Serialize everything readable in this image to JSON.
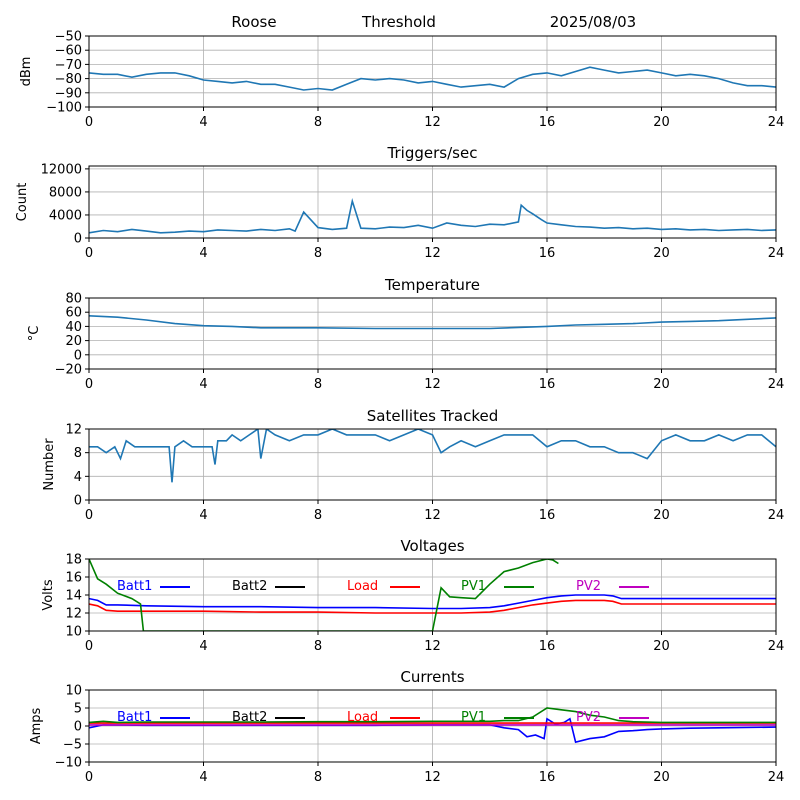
{
  "header": {
    "station": "Roose",
    "label": "Threshold",
    "date": "2025/08/03"
  },
  "chart_data": [
    {
      "id": "signal",
      "type": "line",
      "title": "",
      "ylabel": "dBm",
      "xlim": [
        0,
        24
      ],
      "ylim": [
        -100,
        -50
      ],
      "xticks": [
        0,
        4,
        8,
        12,
        16,
        20,
        24
      ],
      "yticks": [
        -100,
        -90,
        -80,
        -70,
        -60,
        -50
      ],
      "grid": true,
      "series": [
        {
          "color": "#1f77b4",
          "x": [
            0,
            0.5,
            1,
            1.5,
            2,
            2.5,
            3,
            3.5,
            4,
            4.5,
            5,
            5.5,
            6,
            6.5,
            7,
            7.5,
            8,
            8.5,
            9,
            9.5,
            10,
            10.5,
            11,
            11.5,
            12,
            12.5,
            13,
            13.5,
            14,
            14.5,
            15,
            15.5,
            16,
            16.5,
            17,
            17.5,
            18,
            18.5,
            19,
            19.5,
            20,
            20.5,
            21,
            21.5,
            22,
            22.5,
            23,
            23.5,
            24
          ],
          "y": [
            -76,
            -77,
            -77,
            -79,
            -77,
            -76,
            -76,
            -78,
            -81,
            -82,
            -83,
            -82,
            -84,
            -84,
            -86,
            -88,
            -87,
            -88,
            -84,
            -80,
            -81,
            -80,
            -81,
            -83,
            -82,
            -84,
            -86,
            -85,
            -84,
            -86,
            -80,
            -77,
            -76,
            -78,
            -75,
            -72,
            -74,
            -76,
            -75,
            -74,
            -76,
            -78,
            -77,
            -78,
            -80,
            -83,
            -85,
            -85,
            -86
          ]
        }
      ]
    },
    {
      "id": "triggers",
      "type": "line",
      "title": "Triggers/sec",
      "ylabel": "Count",
      "xlim": [
        0,
        24
      ],
      "ylim": [
        0,
        12500
      ],
      "xticks": [
        0,
        4,
        8,
        12,
        16,
        20,
        24
      ],
      "yticks": [
        0,
        4000,
        8000,
        12000
      ],
      "grid": true,
      "series": [
        {
          "color": "#1f77b4",
          "x": [
            0,
            0.5,
            1,
            1.5,
            2,
            2.5,
            3,
            3.5,
            4,
            4.5,
            5,
            5.5,
            6,
            6.5,
            7,
            7.2,
            7.5,
            8,
            8.5,
            9,
            9.2,
            9.5,
            10,
            10.5,
            11,
            11.5,
            12,
            12.5,
            13,
            13.5,
            14,
            14.5,
            15,
            15.1,
            15.3,
            15.5,
            15.8,
            16,
            16.5,
            17,
            17.5,
            18,
            18.5,
            19,
            19.5,
            20,
            20.5,
            21,
            21.5,
            22,
            22.5,
            23,
            23.5,
            24
          ],
          "y": [
            900,
            1300,
            1100,
            1500,
            1200,
            900,
            1000,
            1200,
            1100,
            1400,
            1300,
            1200,
            1500,
            1300,
            1600,
            1200,
            4500,
            1800,
            1500,
            1700,
            6400,
            1700,
            1600,
            1900,
            1800,
            2200,
            1700,
            2600,
            2200,
            2000,
            2400,
            2300,
            2800,
            5700,
            4800,
            4200,
            3200,
            2600,
            2300,
            2000,
            1900,
            1700,
            1800,
            1600,
            1700,
            1500,
            1600,
            1400,
            1500,
            1300,
            1400,
            1500,
            1300,
            1400
          ]
        }
      ]
    },
    {
      "id": "temperature",
      "type": "line",
      "title": "Temperature",
      "ylabel": "°C",
      "xlim": [
        0,
        24
      ],
      "ylim": [
        -20,
        80
      ],
      "xticks": [
        0,
        4,
        8,
        12,
        16,
        20,
        24
      ],
      "yticks": [
        -20,
        0,
        20,
        40,
        60,
        80
      ],
      "grid": true,
      "series": [
        {
          "color": "#1f77b4",
          "x": [
            0,
            1,
            2,
            3,
            4,
            5,
            6,
            8,
            10,
            12,
            14,
            16,
            17,
            18,
            19,
            20,
            21,
            22,
            23,
            24
          ],
          "y": [
            55,
            53,
            49,
            44,
            41,
            40,
            38,
            38,
            37,
            37,
            37,
            40,
            42,
            43,
            44,
            46,
            47,
            48,
            50,
            52
          ]
        }
      ]
    },
    {
      "id": "satellites",
      "type": "line",
      "title": "Satellites Tracked",
      "ylabel": "Number",
      "xlim": [
        0,
        24
      ],
      "ylim": [
        0,
        12
      ],
      "xticks": [
        0,
        4,
        8,
        12,
        16,
        20,
        24
      ],
      "yticks": [
        0,
        4,
        8,
        12
      ],
      "grid": true,
      "series": [
        {
          "color": "#1f77b4",
          "x": [
            0,
            0.3,
            0.6,
            0.9,
            1.1,
            1.3,
            1.6,
            2,
            2.4,
            2.8,
            2.9,
            3,
            3.3,
            3.6,
            4,
            4.3,
            4.4,
            4.5,
            4.8,
            5,
            5.3,
            5.6,
            5.9,
            6,
            6.2,
            6.5,
            7,
            7.5,
            8,
            8.5,
            9,
            9.5,
            10,
            10.5,
            11,
            11.5,
            12,
            12.3,
            12.6,
            13,
            13.5,
            14,
            14.5,
            15,
            15.5,
            16,
            16.5,
            17,
            17.5,
            18,
            18.5,
            19,
            19.5,
            20,
            20.5,
            21,
            21.5,
            22,
            22.5,
            23,
            23.5,
            24
          ],
          "y": [
            9,
            9,
            8,
            9,
            7,
            10,
            9,
            9,
            9,
            9,
            3,
            9,
            10,
            9,
            9,
            9,
            6,
            10,
            10,
            11,
            10,
            11,
            12,
            7,
            12,
            11,
            10,
            11,
            11,
            12,
            11,
            11,
            11,
            10,
            11,
            12,
            11,
            8,
            9,
            10,
            9,
            10,
            11,
            11,
            11,
            9,
            10,
            10,
            9,
            9,
            8,
            8,
            7,
            10,
            11,
            10,
            10,
            11,
            10,
            11,
            11,
            9
          ]
        }
      ]
    },
    {
      "id": "voltages",
      "type": "line",
      "title": "Voltages",
      "ylabel": "Volts",
      "xlim": [
        0,
        24
      ],
      "ylim": [
        10,
        18
      ],
      "xticks": [
        0,
        4,
        8,
        12,
        16,
        20,
        24
      ],
      "yticks": [
        10,
        12,
        14,
        16,
        18
      ],
      "grid": true,
      "legend": [
        "Batt1",
        "Batt2",
        "Load",
        "PV1",
        "PV2"
      ],
      "series": [
        {
          "name": "Batt1",
          "color": "#0000ff",
          "x": [
            0,
            0.3,
            0.6,
            1,
            2,
            4,
            6,
            8,
            10,
            12,
            13,
            14,
            14.5,
            15,
            15.5,
            16,
            16.5,
            17,
            18,
            18.3,
            18.6,
            20,
            22,
            24
          ],
          "y": [
            13.6,
            13.4,
            12.9,
            12.9,
            12.8,
            12.7,
            12.7,
            12.6,
            12.6,
            12.5,
            12.5,
            12.6,
            12.8,
            13.1,
            13.4,
            13.7,
            13.9,
            14.0,
            14.0,
            13.9,
            13.6,
            13.6,
            13.6,
            13.6
          ]
        },
        {
          "name": "Batt2",
          "color": "#000000",
          "x": [],
          "y": []
        },
        {
          "name": "Load",
          "color": "#ff0000",
          "x": [
            0,
            0.3,
            0.6,
            1,
            2,
            4,
            6,
            8,
            10,
            12,
            13,
            14,
            14.5,
            15,
            15.5,
            16,
            16.5,
            17,
            18,
            18.3,
            18.6,
            20,
            22,
            24
          ],
          "y": [
            13.0,
            12.8,
            12.3,
            12.2,
            12.2,
            12.2,
            12.1,
            12.1,
            12.0,
            12.0,
            12.0,
            12.1,
            12.3,
            12.6,
            12.9,
            13.1,
            13.3,
            13.4,
            13.4,
            13.3,
            13.0,
            13.0,
            13.0,
            13.0
          ]
        },
        {
          "name": "PV1",
          "color": "#008000",
          "x": [
            0,
            0.3,
            0.6,
            1,
            1.5,
            1.8,
            1.9,
            12,
            12.3,
            12.6,
            13,
            13.5,
            14,
            14.5,
            15,
            15.5,
            16,
            16.2,
            16.4
          ],
          "y": [
            18.0,
            15.8,
            15.2,
            14.2,
            13.6,
            13.0,
            10,
            10,
            14.8,
            13.8,
            13.7,
            13.6,
            15.2,
            16.6,
            17.0,
            17.6,
            18.0,
            17.9,
            17.5
          ]
        },
        {
          "name": "PV2",
          "color": "#bf00bf",
          "x": [],
          "y": []
        }
      ]
    },
    {
      "id": "currents",
      "type": "line",
      "title": "Currents",
      "ylabel": "Amps",
      "xlim": [
        0,
        24
      ],
      "ylim": [
        -10,
        10
      ],
      "xticks": [
        0,
        4,
        8,
        12,
        16,
        20,
        24
      ],
      "yticks": [
        -10,
        -5,
        0,
        5,
        10
      ],
      "grid": true,
      "legend": [
        "Batt1",
        "Batt2",
        "Load",
        "PV1",
        "PV2"
      ],
      "series": [
        {
          "name": "Batt1",
          "color": "#0000ff",
          "x": [
            0,
            0.5,
            2,
            4,
            6,
            8,
            10,
            12,
            14,
            14.5,
            15,
            15.3,
            15.6,
            15.9,
            16,
            16.3,
            16.6,
            16.8,
            17,
            17.5,
            18,
            18.5,
            19,
            19.5,
            20,
            21,
            22,
            24
          ],
          "y": [
            -0.5,
            0.3,
            0.2,
            0.2,
            0.2,
            0.2,
            0.2,
            0.3,
            0.3,
            -0.5,
            -1.0,
            -3.0,
            -2.5,
            -3.5,
            2.0,
            0.5,
            1.0,
            2.0,
            -4.5,
            -3.5,
            -3.0,
            -1.5,
            -1.3,
            -1.0,
            -0.8,
            -0.6,
            -0.5,
            -0.3
          ]
        },
        {
          "name": "Batt2",
          "color": "#000000",
          "x": [],
          "y": []
        },
        {
          "name": "Load",
          "color": "#ff0000",
          "x": [
            0,
            4,
            8,
            12,
            16,
            20,
            24
          ],
          "y": [
            0.8,
            0.8,
            0.8,
            0.8,
            0.8,
            0.8,
            0.8
          ]
        },
        {
          "name": "PV1",
          "color": "#008000",
          "x": [
            0,
            0.5,
            1,
            2,
            4,
            6,
            8,
            10,
            12,
            14,
            14.5,
            15,
            15.5,
            16,
            16.5,
            17,
            17.5,
            18,
            18.5,
            19,
            20,
            22,
            24
          ],
          "y": [
            1.0,
            1.3,
            1.0,
            1.1,
            1.1,
            1.1,
            1.2,
            1.2,
            1.3,
            1.3,
            1.5,
            1.5,
            2.5,
            5.0,
            4.5,
            4.0,
            3.0,
            2.5,
            1.5,
            1.2,
            1.0,
            1.0,
            1.0
          ]
        },
        {
          "name": "PV2",
          "color": "#bf00bf",
          "x": [
            0,
            4,
            8,
            12,
            16,
            20,
            24
          ],
          "y": [
            0.3,
            0.3,
            0.3,
            0.3,
            0.3,
            0.3,
            0.3
          ]
        }
      ]
    }
  ]
}
